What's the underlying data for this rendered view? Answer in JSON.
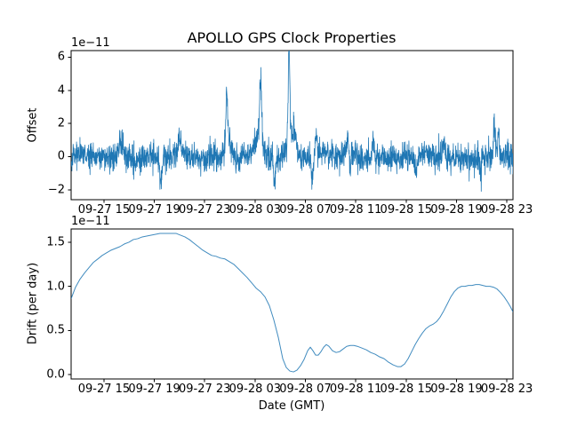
{
  "figure": {
    "background": "#ffffff",
    "text_color": "#000000",
    "line_color": "#1f77b4",
    "spine_color": "#000000"
  },
  "chart_data": [
    {
      "type": "line",
      "title": "APOLLO GPS Clock Properties",
      "ylabel": "Offset",
      "xlabel": "",
      "scale_label": "1e−11",
      "y_units": "seconds (value shown × 1e-11)",
      "ylim": [
        -2.6,
        6.4
      ],
      "yticks": [
        -2,
        0,
        2,
        4,
        6
      ],
      "ytick_labels": [
        "−2",
        "0",
        "2",
        "4",
        "6"
      ],
      "x_units": "hours since 09-27 00:00 GMT",
      "xlim_hours": [
        12.39,
        47.49
      ],
      "xticks_hours": [
        15,
        19,
        23,
        27,
        31,
        35,
        39,
        43,
        47
      ],
      "xtick_labels": [
        "09-27 15",
        "09-27 19",
        "09-27 23",
        "09-28 03",
        "09-28 07",
        "09-28 11",
        "09-28 15",
        "09-28 19",
        "09-28 23"
      ],
      "grid": false,
      "legend": "none",
      "series": [
        {
          "name": "offset",
          "color": "#1f77b4",
          "representation": {
            "kind": "gaussian_noise_with_spikes",
            "n_points": 2200,
            "mean": 0.0,
            "std": 0.42,
            "seed": 42,
            "wander": [
              {
                "amp": 0.1,
                "period": 6.5,
                "phase": 0.5
              },
              {
                "amp": 0.08,
                "period": 2.7,
                "phase": 2.0
              }
            ],
            "spikes": [
              {
                "h": 16.3,
                "amp": 1.1,
                "w": 0.12
              },
              {
                "h": 19.5,
                "amp": -1.7,
                "w": 0.08
              },
              {
                "h": 21.0,
                "amp": 0.9,
                "w": 0.1
              },
              {
                "h": 24.75,
                "amp": 3.1,
                "w": 0.07
              },
              {
                "h": 24.9,
                "amp": 0.9,
                "w": 0.25
              },
              {
                "h": 27.3,
                "amp": 1.0,
                "w": 0.3
              },
              {
                "h": 27.45,
                "amp": 3.5,
                "w": 0.09
              },
              {
                "h": 28.55,
                "amp": -1.7,
                "w": 0.08
              },
              {
                "h": 29.7,
                "amp": 5.7,
                "w": 0.06
              },
              {
                "h": 29.95,
                "amp": 1.7,
                "w": 0.3
              },
              {
                "h": 31.55,
                "amp": -1.4,
                "w": 0.08
              },
              {
                "h": 31.85,
                "amp": 1.3,
                "w": 0.08
              },
              {
                "h": 34.4,
                "amp": 1.5,
                "w": 0.1
              },
              {
                "h": 34.52,
                "amp": -1.4,
                "w": 0.06
              },
              {
                "h": 36.4,
                "amp": 1.2,
                "w": 0.1
              },
              {
                "h": 39.8,
                "amp": -1.1,
                "w": 0.1
              },
              {
                "h": 42.0,
                "amp": 1.0,
                "w": 0.1
              },
              {
                "h": 44.9,
                "amp": -1.1,
                "w": 0.08
              },
              {
                "h": 46.0,
                "amp": 2.1,
                "w": 0.05
              },
              {
                "h": 46.35,
                "amp": 1.7,
                "w": 0.05
              }
            ]
          }
        }
      ]
    },
    {
      "type": "line",
      "title": "",
      "ylabel": "Drift (per day)",
      "xlabel": "Date (GMT)",
      "scale_label": "1e−11",
      "y_units": "per day (value shown × 1e-11)",
      "ylim": [
        -0.05,
        1.65
      ],
      "yticks": [
        0.0,
        0.5,
        1.0,
        1.5
      ],
      "ytick_labels": [
        "0.0",
        "0.5",
        "1.0",
        "1.5"
      ],
      "x_units": "hours since 09-27 00:00 GMT",
      "xlim_hours": [
        12.39,
        47.49
      ],
      "xticks_hours": [
        15,
        19,
        23,
        27,
        31,
        35,
        39,
        43,
        47
      ],
      "xtick_labels": [
        "09-27 15",
        "09-27 19",
        "09-27 23",
        "09-28 03",
        "09-28 07",
        "09-28 11",
        "09-28 15",
        "09-28 19",
        "09-28 23"
      ],
      "grid": false,
      "legend": "none",
      "series": [
        {
          "name": "drift",
          "color": "#1f77b4",
          "points": [
            [
              12.39,
              0.86
            ],
            [
              12.74,
              0.99
            ],
            [
              13.09,
              1.08
            ],
            [
              13.45,
              1.15
            ],
            [
              13.8,
              1.21
            ],
            [
              14.15,
              1.27
            ],
            [
              14.51,
              1.31
            ],
            [
              14.86,
              1.35
            ],
            [
              15.21,
              1.38
            ],
            [
              15.57,
              1.41
            ],
            [
              15.92,
              1.43
            ],
            [
              16.27,
              1.45
            ],
            [
              16.62,
              1.48
            ],
            [
              16.98,
              1.5
            ],
            [
              17.33,
              1.53
            ],
            [
              17.68,
              1.54
            ],
            [
              18.04,
              1.56
            ],
            [
              18.39,
              1.57
            ],
            [
              18.74,
              1.58
            ],
            [
              19.1,
              1.59
            ],
            [
              19.45,
              1.6
            ],
            [
              19.87,
              1.6
            ],
            [
              20.3,
              1.6
            ],
            [
              20.72,
              1.6
            ],
            [
              21.07,
              1.58
            ],
            [
              21.43,
              1.56
            ],
            [
              21.78,
              1.53
            ],
            [
              22.13,
              1.49
            ],
            [
              22.49,
              1.45
            ],
            [
              22.84,
              1.41
            ],
            [
              23.19,
              1.38
            ],
            [
              23.55,
              1.35
            ],
            [
              23.9,
              1.34
            ],
            [
              24.25,
              1.32
            ],
            [
              24.61,
              1.31
            ],
            [
              24.96,
              1.28
            ],
            [
              25.31,
              1.25
            ],
            [
              25.67,
              1.2
            ],
            [
              26.02,
              1.15
            ],
            [
              26.37,
              1.1
            ],
            [
              26.73,
              1.04
            ],
            [
              27.08,
              0.98
            ],
            [
              27.43,
              0.94
            ],
            [
              27.79,
              0.88
            ],
            [
              28.14,
              0.78
            ],
            [
              28.49,
              0.62
            ],
            [
              28.85,
              0.42
            ],
            [
              29.2,
              0.18
            ],
            [
              29.48,
              0.08
            ],
            [
              29.76,
              0.04
            ],
            [
              30.05,
              0.03
            ],
            [
              30.33,
              0.05
            ],
            [
              30.61,
              0.1
            ],
            [
              30.89,
              0.17
            ],
            [
              31.18,
              0.27
            ],
            [
              31.39,
              0.31
            ],
            [
              31.6,
              0.27
            ],
            [
              31.81,
              0.22
            ],
            [
              32.02,
              0.22
            ],
            [
              32.24,
              0.26
            ],
            [
              32.45,
              0.31
            ],
            [
              32.66,
              0.34
            ],
            [
              32.87,
              0.32
            ],
            [
              33.15,
              0.27
            ],
            [
              33.44,
              0.25
            ],
            [
              33.72,
              0.26
            ],
            [
              34.0,
              0.29
            ],
            [
              34.28,
              0.32
            ],
            [
              34.57,
              0.33
            ],
            [
              34.85,
              0.33
            ],
            [
              35.13,
              0.32
            ],
            [
              35.49,
              0.3
            ],
            [
              35.84,
              0.28
            ],
            [
              36.19,
              0.25
            ],
            [
              36.55,
              0.23
            ],
            [
              36.9,
              0.2
            ],
            [
              37.25,
              0.18
            ],
            [
              37.6,
              0.14
            ],
            [
              37.96,
              0.11
            ],
            [
              38.31,
              0.09
            ],
            [
              38.59,
              0.09
            ],
            [
              38.88,
              0.12
            ],
            [
              39.16,
              0.18
            ],
            [
              39.44,
              0.26
            ],
            [
              39.72,
              0.34
            ],
            [
              40.01,
              0.41
            ],
            [
              40.29,
              0.47
            ],
            [
              40.57,
              0.52
            ],
            [
              40.85,
              0.55
            ],
            [
              41.14,
              0.57
            ],
            [
              41.42,
              0.6
            ],
            [
              41.7,
              0.65
            ],
            [
              41.98,
              0.72
            ],
            [
              42.27,
              0.8
            ],
            [
              42.55,
              0.88
            ],
            [
              42.83,
              0.94
            ],
            [
              43.11,
              0.98
            ],
            [
              43.4,
              1.0
            ],
            [
              43.68,
              1.0
            ],
            [
              43.96,
              1.01
            ],
            [
              44.24,
              1.01
            ],
            [
              44.53,
              1.02
            ],
            [
              44.81,
              1.02
            ],
            [
              45.09,
              1.01
            ],
            [
              45.37,
              1.0
            ],
            [
              45.66,
              1.0
            ],
            [
              45.94,
              0.99
            ],
            [
              46.22,
              0.97
            ],
            [
              46.5,
              0.93
            ],
            [
              46.79,
              0.88
            ],
            [
              47.07,
              0.82
            ],
            [
              47.28,
              0.77
            ],
            [
              47.49,
              0.71
            ]
          ]
        }
      ]
    }
  ]
}
